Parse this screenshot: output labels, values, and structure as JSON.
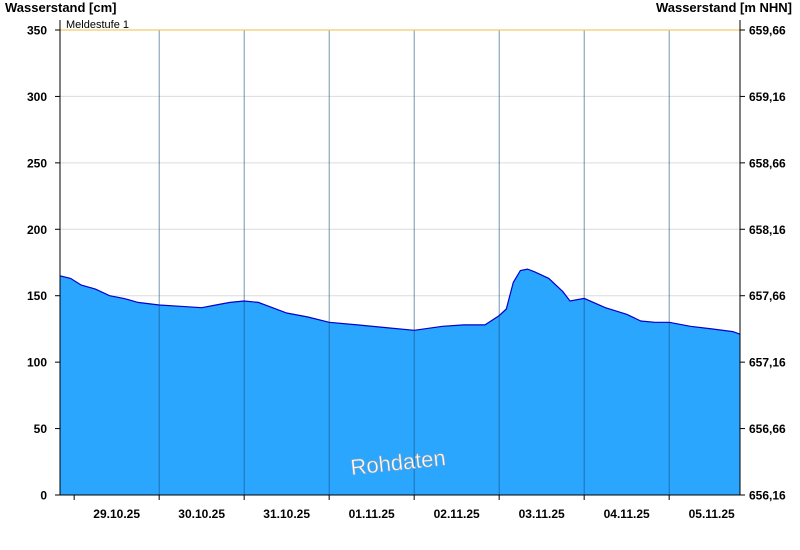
{
  "header": {
    "left_axis_title": "Wasserstand [cm]",
    "right_axis_title": "Wasserstand [m NHN]"
  },
  "watermark": "Rohdaten",
  "colors": {
    "area_fill": "#2aa6ff",
    "series_line": "#0000cc",
    "threshold_line": "#f2c96b",
    "grid": "#dcdcdc",
    "day_divider": "#1a4f7a",
    "axis": "#000000"
  },
  "chart_data": {
    "type": "area",
    "title": "",
    "xlabel": "",
    "ylabel": "Wasserstand [cm]",
    "ylabel_right": "Wasserstand [m NHN]",
    "ylim": [
      0,
      350
    ],
    "y_ticks": [
      0,
      50,
      100,
      150,
      200,
      250,
      300,
      350
    ],
    "y_right_ticks": [
      "656,16",
      "656,66",
      "657,16",
      "657,66",
      "658,16",
      "658,66",
      "659,16",
      "659,66"
    ],
    "x_range": [
      "2025-10-28T20:00",
      "2025-11-05T20:00"
    ],
    "x_tick_labels": [
      "29.10.25",
      "30.10.25",
      "31.10.25",
      "01.11.25",
      "02.11.25",
      "03.11.25",
      "04.11.25",
      "05.11.25"
    ],
    "day_boundaries": [
      "2025-10-29T00:00",
      "2025-10-30T00:00",
      "2025-10-31T00:00",
      "2025-11-01T00:00",
      "2025-11-02T00:00",
      "2025-11-03T00:00",
      "2025-11-04T00:00",
      "2025-11-05T00:00"
    ],
    "grid": true,
    "threshold": {
      "label": "Meldestufe 1",
      "value": 350
    },
    "series": [
      {
        "x": [
          "2025-10-28T20:00",
          "2025-10-28T23:00",
          "2025-10-29T02:00",
          "2025-10-29T06:00",
          "2025-10-29T10:00",
          "2025-10-29T14:00",
          "2025-10-29T18:00",
          "2025-10-30T00:00",
          "2025-10-30T06:00",
          "2025-10-30T12:00",
          "2025-10-30T16:00",
          "2025-10-30T20:00",
          "2025-10-31T00:00",
          "2025-10-31T04:00",
          "2025-10-31T08:00",
          "2025-10-31T12:00",
          "2025-10-31T18:00",
          "2025-11-01T00:00",
          "2025-11-01T08:00",
          "2025-11-01T16:00",
          "2025-11-02T00:00",
          "2025-11-02T08:00",
          "2025-11-02T14:00",
          "2025-11-02T20:00",
          "2025-11-03T00:00",
          "2025-11-03T02:00",
          "2025-11-03T04:00",
          "2025-11-03T06:00",
          "2025-11-03T08:00",
          "2025-11-03T10:00",
          "2025-11-03T14:00",
          "2025-11-03T18:00",
          "2025-11-03T20:00",
          "2025-11-04T00:00",
          "2025-11-04T06:00",
          "2025-11-04T12:00",
          "2025-11-04T16:00",
          "2025-11-04T20:00",
          "2025-11-05T00:00",
          "2025-11-05T06:00",
          "2025-11-05T12:00",
          "2025-11-05T18:00",
          "2025-11-05T20:00"
        ],
        "y": [
          165,
          163,
          158,
          155,
          150,
          148,
          145,
          143,
          142,
          141,
          143,
          145,
          146,
          145,
          141,
          137,
          134,
          130,
          128,
          126,
          124,
          127,
          128,
          128,
          135,
          140,
          160,
          169,
          170,
          168,
          163,
          153,
          146,
          148,
          141,
          136,
          131,
          130,
          130,
          127,
          125,
          123,
          121
        ]
      }
    ]
  }
}
